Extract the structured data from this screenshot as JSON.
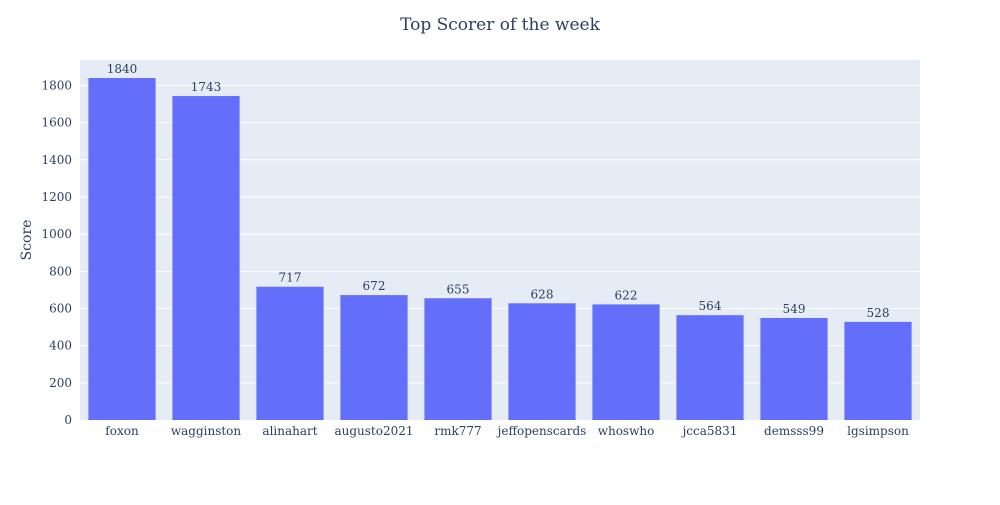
{
  "chart_data": {
    "type": "bar",
    "title": "Top Scorer of the week",
    "xlabel": "",
    "ylabel": "Score",
    "categories": [
      "foxon",
      "wagginston",
      "alinahart",
      "augusto2021",
      "rmk777",
      "jeffopenscards",
      "whoswho",
      "jcca5831",
      "demsss99",
      "lgsimpson"
    ],
    "values": [
      1840,
      1743,
      717,
      672,
      655,
      628,
      622,
      564,
      549,
      528
    ],
    "ylim": [
      0,
      1937
    ],
    "yticks": [
      0,
      200,
      400,
      600,
      800,
      1000,
      1200,
      1400,
      1600,
      1800
    ],
    "grid": true,
    "bar_color": "#636efa",
    "plot_background": "#e5ecf6",
    "text_color": "#2a3f5f"
  }
}
